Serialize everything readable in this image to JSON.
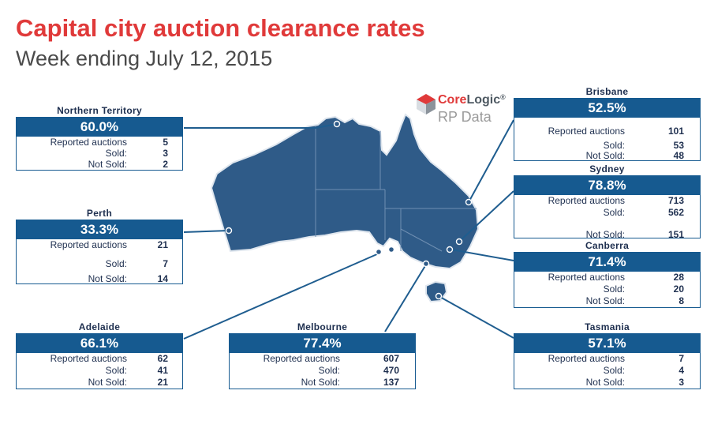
{
  "title": "Capital city auction clearance rates",
  "subtitle": "Week ending July 12, 2015",
  "logo": {
    "brand_a": "Core",
    "brand_b": "Logic",
    "reg": "®",
    "sub": "RP Data"
  },
  "colors": {
    "accent": "#e03a3a",
    "box_blue": "#165a90",
    "land": "#2f5b88",
    "label_text": "#1e2f4f"
  },
  "cities": {
    "northern_territory": {
      "name": "Northern Territory",
      "rate": "60.0%",
      "reported_label": "Reported auctions",
      "reported": "5",
      "sold_label": "Sold:",
      "sold": "3",
      "not_sold_label": "Not Sold:",
      "not_sold": "2"
    },
    "perth": {
      "name": "Perth",
      "rate": "33.3%",
      "reported_label": "Reported auctions",
      "reported": "21",
      "sold_label": "Sold:",
      "sold": "7",
      "not_sold_label": "Not Sold:",
      "not_sold": "14"
    },
    "adelaide": {
      "name": "Adelaide",
      "rate": "66.1%",
      "reported_label": "Reported auctions",
      "reported": "62",
      "sold_label": "Sold:",
      "sold": "41",
      "not_sold_label": "Not Sold:",
      "not_sold": "21"
    },
    "melbourne": {
      "name": "Melbourne",
      "rate": "77.4%",
      "reported_label": "Reported auctions",
      "reported": "607",
      "sold_label": "Sold:",
      "sold": "470",
      "not_sold_label": "Not Sold:",
      "not_sold": "137"
    },
    "brisbane": {
      "name": "Brisbane",
      "rate": "52.5%",
      "reported_label": "Reported auctions",
      "reported": "101",
      "sold_label": "Sold:",
      "sold": "53",
      "not_sold_label": "Not Sold:",
      "not_sold": "48"
    },
    "sydney": {
      "name": "Sydney",
      "rate": "78.8%",
      "reported_label": "Reported auctions",
      "reported": "713",
      "sold_label": "Sold:",
      "sold": "562",
      "not_sold_label": "Not Sold:",
      "not_sold": "151"
    },
    "canberra": {
      "name": "Canberra",
      "rate": "71.4%",
      "reported_label": "Reported auctions",
      "reported": "28",
      "sold_label": "Sold:",
      "sold": "20",
      "not_sold_label": "Not Sold:",
      "not_sold": "8"
    },
    "tasmania": {
      "name": "Tasmania",
      "rate": "57.1%",
      "reported_label": "Reported auctions",
      "reported": "7",
      "sold_label": "Sold:",
      "sold": "4",
      "not_sold_label": "Not Sold:",
      "not_sold": "3"
    }
  }
}
